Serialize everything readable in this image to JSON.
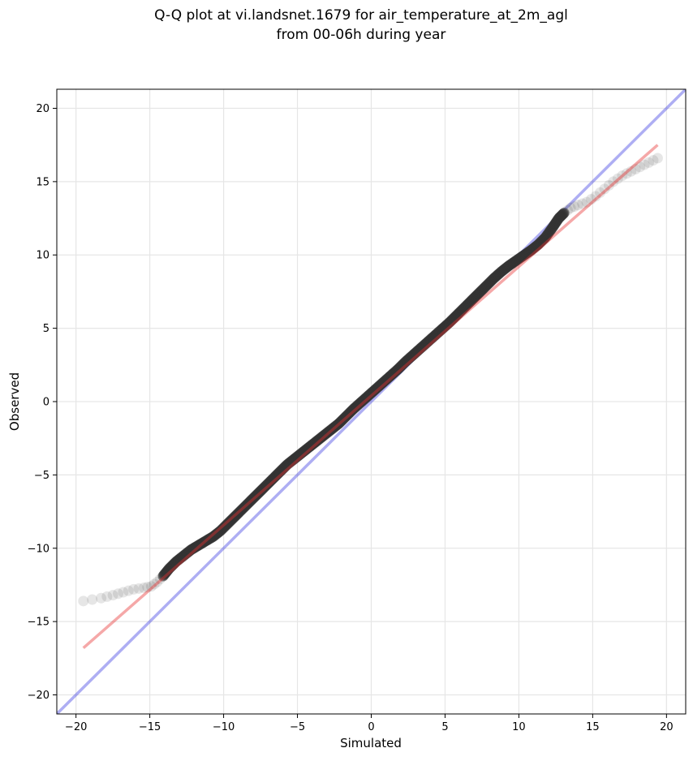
{
  "chart_data": {
    "type": "scatter",
    "title": "Q-Q plot at vi.landsnet.1679 for air_temperature_at_2m_agl\nfrom 00-06h during year",
    "title_lines": [
      "Q-Q plot at vi.landsnet.1679 for air_temperature_at_2m_agl",
      "from 00-06h during year"
    ],
    "xlabel": "Simulated",
    "ylabel": "Observed",
    "xlim": [
      -21.3,
      21.3
    ],
    "ylim": [
      -21.3,
      21.3
    ],
    "xticks": [
      -20,
      -15,
      -10,
      -5,
      0,
      5,
      10,
      15,
      20
    ],
    "yticks": [
      -20,
      -15,
      -10,
      -5,
      0,
      5,
      10,
      15,
      20
    ],
    "xtick_labels": [
      "−20",
      "−15",
      "−10",
      "−5",
      "0",
      "5",
      "10",
      "15",
      "20"
    ],
    "ytick_labels": [
      "−20",
      "−15",
      "−10",
      "−5",
      "0",
      "5",
      "10",
      "15",
      "20"
    ],
    "grid": true,
    "series": [
      {
        "kind": "quantiles",
        "color": "#333333",
        "x": [
          -19.5,
          -18.3,
          -17.5,
          -16.8,
          -16.1,
          -15.4,
          -14.9,
          -14.5,
          -14.1,
          -13.7,
          -13.2,
          -12.7,
          -12.2,
          -11.7,
          -11.2,
          -10.7,
          -10.2,
          -9.7,
          -9.2,
          -8.7,
          -8.2,
          -7.7,
          -7.2,
          -6.7,
          -6.2,
          -5.7,
          -5.2,
          -4.7,
          -4.2,
          -3.7,
          -3.2,
          -2.7,
          -2.2,
          -1.7,
          -1.2,
          -0.7,
          -0.2,
          0.3,
          0.8,
          1.3,
          1.8,
          2.3,
          2.8,
          3.3,
          3.8,
          4.3,
          4.8,
          5.3,
          5.8,
          6.3,
          6.8,
          7.3,
          7.8,
          8.3,
          8.8,
          9.3,
          9.8,
          10.3,
          10.8,
          11.3,
          11.8,
          12.3,
          12.7,
          13.1,
          13.5,
          14.0,
          14.6,
          15.2,
          15.8,
          16.4,
          17.0,
          17.6,
          18.2,
          18.8,
          19.4
        ],
        "y": [
          -13.6,
          -13.4,
          -13.2,
          -13.0,
          -12.8,
          -12.7,
          -12.6,
          -12.3,
          -11.9,
          -11.4,
          -10.9,
          -10.5,
          -10.1,
          -9.8,
          -9.5,
          -9.2,
          -8.8,
          -8.3,
          -7.8,
          -7.3,
          -6.8,
          -6.3,
          -5.8,
          -5.3,
          -4.8,
          -4.3,
          -3.9,
          -3.5,
          -3.1,
          -2.7,
          -2.3,
          -1.9,
          -1.5,
          -1.0,
          -0.5,
          -0.05,
          0.4,
          0.85,
          1.3,
          1.75,
          2.2,
          2.7,
          3.15,
          3.6,
          4.05,
          4.5,
          4.95,
          5.4,
          5.9,
          6.4,
          6.9,
          7.4,
          7.9,
          8.4,
          8.85,
          9.25,
          9.6,
          9.95,
          10.3,
          10.7,
          11.2,
          11.9,
          12.5,
          12.9,
          13.2,
          13.4,
          13.6,
          14.0,
          14.5,
          15.0,
          15.4,
          15.7,
          16.0,
          16.3,
          16.6
        ]
      },
      {
        "kind": "fit-line",
        "color": "#f4a0a0",
        "x": [
          -19.5,
          19.4
        ],
        "y": [
          -16.8,
          17.5
        ]
      },
      {
        "kind": "identity-line",
        "color": "#aaaaf2",
        "x": [
          -21.3,
          21.3
        ],
        "y": [
          -21.3,
          21.3
        ]
      }
    ]
  }
}
